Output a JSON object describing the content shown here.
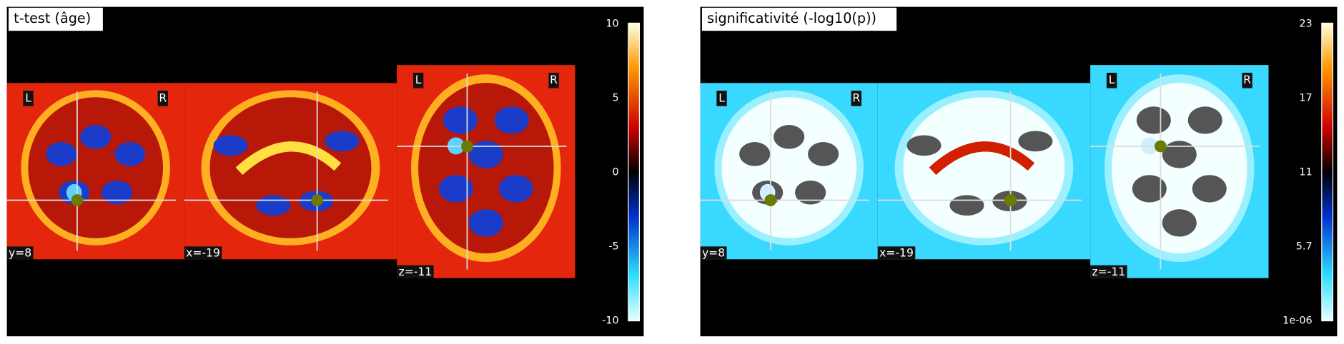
{
  "panels": [
    {
      "title": "t-test (âge)",
      "colorbar_ticks": [
        "10",
        "5",
        "0",
        "-5",
        "-10"
      ],
      "slices": [
        {
          "label": "y=8",
          "left": "L",
          "right": "R"
        },
        {
          "label": "x=-19"
        },
        {
          "label": "z=-11",
          "left": "L",
          "right": "R"
        }
      ]
    },
    {
      "title": "significativité (-log10(p))",
      "colorbar_ticks": [
        "23",
        "17",
        "11",
        "5.7",
        "1e-06"
      ],
      "slices": [
        {
          "label": "y=8",
          "left": "L",
          "right": "R"
        },
        {
          "label": "x=-19"
        },
        {
          "label": "z=-11",
          "left": "L",
          "right": "R"
        }
      ]
    }
  ]
}
